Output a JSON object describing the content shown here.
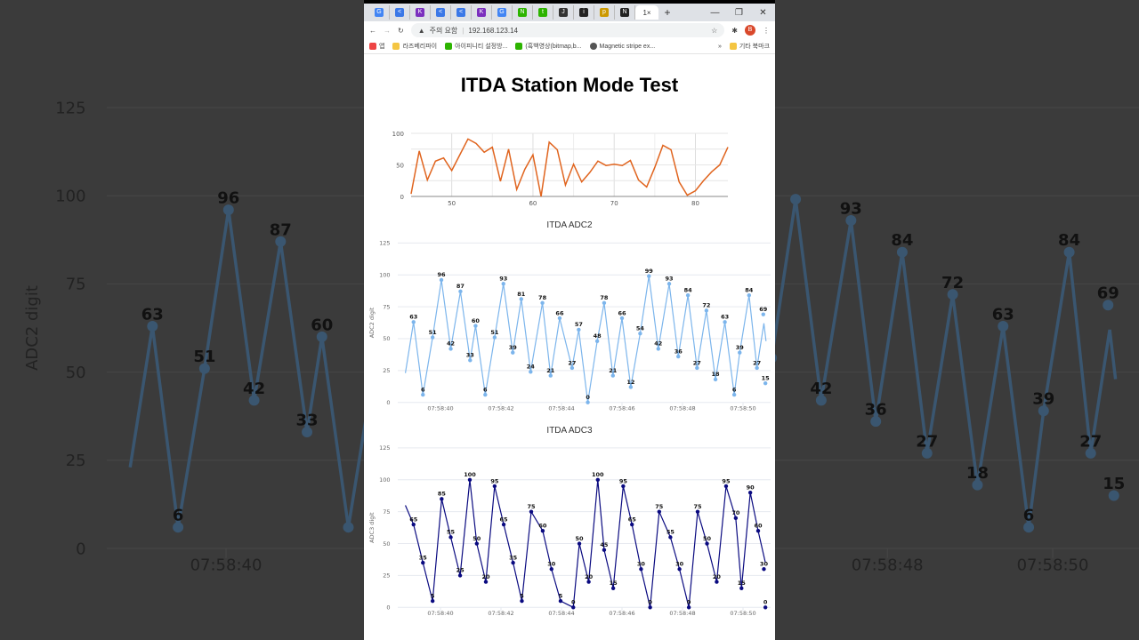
{
  "browser": {
    "tabs": [
      "G",
      "<>",
      "K",
      "<>",
      "<>",
      "K",
      "G",
      "N",
      "talk",
      "J",
      "img",
      "pic",
      "N"
    ],
    "active_tab": "1",
    "new_tab": "+",
    "window_controls": [
      "—",
      "❐",
      "✕"
    ],
    "security_label": "주의 요함",
    "url": "192.168.123.14",
    "profile_initial": "B",
    "bookmarks": [
      {
        "label": "앱",
        "icon": "apps-icon"
      },
      {
        "label": "라즈베리파이",
        "icon": "folder-icon"
      },
      {
        "label": "아이피니티 설정방...",
        "icon": "chat-icon"
      },
      {
        "label": "(흑백영상(bitmap,b...",
        "icon": "chat-icon"
      },
      {
        "label": "Magnetic stripe ex...",
        "icon": "globe-icon"
      }
    ],
    "more_bookmarks": "»",
    "other_bookmarks": "기타 북마크"
  },
  "page": {
    "title": "ITDA Station Mode Test"
  },
  "colors": {
    "top": "#e0641e",
    "adc2": "#7cb5ec",
    "adc3": "#0a0a80",
    "background": "#3b3b3b",
    "background_line": "#3a5670"
  },
  "chart_data": [
    {
      "id": "top",
      "type": "line",
      "title": "",
      "xlim": [
        45,
        84
      ],
      "ylim": [
        0,
        100
      ],
      "xticks": [
        50,
        60,
        70,
        80
      ],
      "yticks": [
        0,
        50,
        100
      ],
      "grid": true,
      "x": [
        45,
        46,
        47,
        48,
        49,
        50,
        51,
        52,
        53,
        54,
        55,
        56,
        57,
        58,
        59,
        60,
        61,
        62,
        63,
        64,
        65,
        66,
        67,
        68,
        69,
        70,
        71,
        72,
        73,
        74,
        75,
        76,
        77,
        78,
        79,
        80,
        81,
        82,
        83,
        84
      ],
      "values": [
        4,
        72,
        26,
        56,
        61,
        41,
        66,
        91,
        84,
        70,
        78,
        24,
        75,
        11,
        43,
        66,
        0,
        86,
        74,
        18,
        51,
        23,
        38,
        56,
        49,
        51,
        49,
        57,
        26,
        15,
        46,
        81,
        74,
        23,
        2,
        9,
        25,
        39,
        50,
        78
      ]
    },
    {
      "id": "adc2",
      "type": "line",
      "title": "ITDA ADC2",
      "ylabel": "ADC2 digit",
      "ylim": [
        0,
        125
      ],
      "yticks": [
        0,
        25,
        50,
        75,
        100,
        125
      ],
      "xticks": [
        "07:58:40",
        "07:58:42",
        "07:58:44",
        "07:58:46",
        "07:58:48",
        "07:58:50"
      ],
      "points": [
        [
          "07:58:38.84",
          23,
          "line"
        ],
        [
          "07:58:39.11",
          63
        ],
        [
          "07:58:39.42",
          6
        ],
        [
          "07:58:39.74",
          51
        ],
        [
          "07:58:40.03",
          96
        ],
        [
          "07:58:40.34",
          42
        ],
        [
          "07:58:40.66",
          87
        ],
        [
          "07:58:40.98",
          33
        ],
        [
          "07:58:41.16",
          60
        ],
        [
          "07:58:41.48",
          6
        ],
        [
          "07:58:41.79",
          51
        ],
        [
          "07:58:42.08",
          93
        ],
        [
          "07:58:42.39",
          39
        ],
        [
          "07:58:42.67",
          81
        ],
        [
          "07:58:42.98",
          24
        ],
        [
          "07:58:43.37",
          78
        ],
        [
          "07:58:43.64",
          21
        ],
        [
          "07:58:43.94",
          66
        ],
        [
          "07:58:44.35",
          27
        ],
        [
          "07:58:44.57",
          57
        ],
        [
          "07:58:44.87",
          0
        ],
        [
          "07:58:45.18",
          48
        ],
        [
          "07:58:45.41",
          78
        ],
        [
          "07:58:45.70",
          21
        ],
        [
          "07:58:46.00",
          66
        ],
        [
          "07:58:46.29",
          12
        ],
        [
          "07:58:46.60",
          54
        ],
        [
          "07:58:46.89",
          99
        ],
        [
          "07:58:47.20",
          42
        ],
        [
          "07:58:47.56",
          93
        ],
        [
          "07:58:47.86",
          36
        ],
        [
          "07:58:48.18",
          84
        ],
        [
          "07:58:48.48",
          27
        ],
        [
          "07:58:48.79",
          72
        ],
        [
          "07:58:49.09",
          18
        ],
        [
          "07:58:49.40",
          63
        ],
        [
          "07:58:49.71",
          6
        ],
        [
          "07:58:49.89",
          39
        ],
        [
          "07:58:50.20",
          84
        ],
        [
          "07:58:50.46",
          27
        ],
        [
          "07:58:50.69",
          62,
          "line"
        ],
        [
          "07:58:50.76",
          48,
          "line"
        ],
        [
          "07:58:50.67",
          69,
          "marker"
        ],
        [
          "07:58:50.74",
          15,
          "marker"
        ]
      ]
    },
    {
      "id": "adc3",
      "type": "line",
      "title": "ITDA ADC3",
      "ylabel": "ADC3 digit",
      "ylim": [
        0,
        125
      ],
      "yticks": [
        0,
        25,
        50,
        75,
        100,
        125
      ],
      "xticks": [
        "07:58:40",
        "07:58:42",
        "07:58:44",
        "07:58:46",
        "07:58:48",
        "07:58:50"
      ],
      "points": [
        [
          "07:58:38.84",
          80,
          "line"
        ],
        [
          "07:58:39.11",
          65
        ],
        [
          "07:58:39.42",
          35
        ],
        [
          "07:58:39.74",
          5
        ],
        [
          "07:58:40.04",
          85
        ],
        [
          "07:58:40.34",
          55
        ],
        [
          "07:58:40.65",
          25
        ],
        [
          "07:58:40.97",
          100
        ],
        [
          "07:58:41.20",
          50
        ],
        [
          "07:58:41.50",
          20
        ],
        [
          "07:58:41.79",
          95
        ],
        [
          "07:58:42.09",
          65
        ],
        [
          "07:58:42.40",
          35
        ],
        [
          "07:58:42.69",
          5
        ],
        [
          "07:58:43.00",
          75
        ],
        [
          "07:58:43.38",
          60
        ],
        [
          "07:58:43.67",
          30
        ],
        [
          "07:58:43.97",
          5
        ],
        [
          "07:58:44.39",
          0
        ],
        [
          "07:58:44.59",
          50
        ],
        [
          "07:58:44.90",
          20
        ],
        [
          "07:58:45.20",
          100
        ],
        [
          "07:58:45.41",
          45
        ],
        [
          "07:58:45.71",
          15
        ],
        [
          "07:58:46.04",
          95
        ],
        [
          "07:58:46.33",
          65
        ],
        [
          "07:58:46.63",
          30
        ],
        [
          "07:58:46.93",
          0
        ],
        [
          "07:58:47.23",
          75
        ],
        [
          "07:58:47.60",
          55
        ],
        [
          "07:58:47.90",
          30
        ],
        [
          "07:58:48.21",
          0
        ],
        [
          "07:58:48.50",
          75
        ],
        [
          "07:58:48.81",
          50
        ],
        [
          "07:58:49.13",
          20
        ],
        [
          "07:58:49.44",
          95
        ],
        [
          "07:58:49.76",
          70
        ],
        [
          "07:58:49.95",
          15
        ],
        [
          "07:58:50.24",
          90
        ],
        [
          "07:58:50.50",
          60
        ],
        [
          "07:58:50.74",
          35,
          "line"
        ],
        [
          "07:58:50.69",
          30,
          "marker"
        ],
        [
          "07:58:50.74",
          0,
          "marker"
        ]
      ]
    }
  ]
}
